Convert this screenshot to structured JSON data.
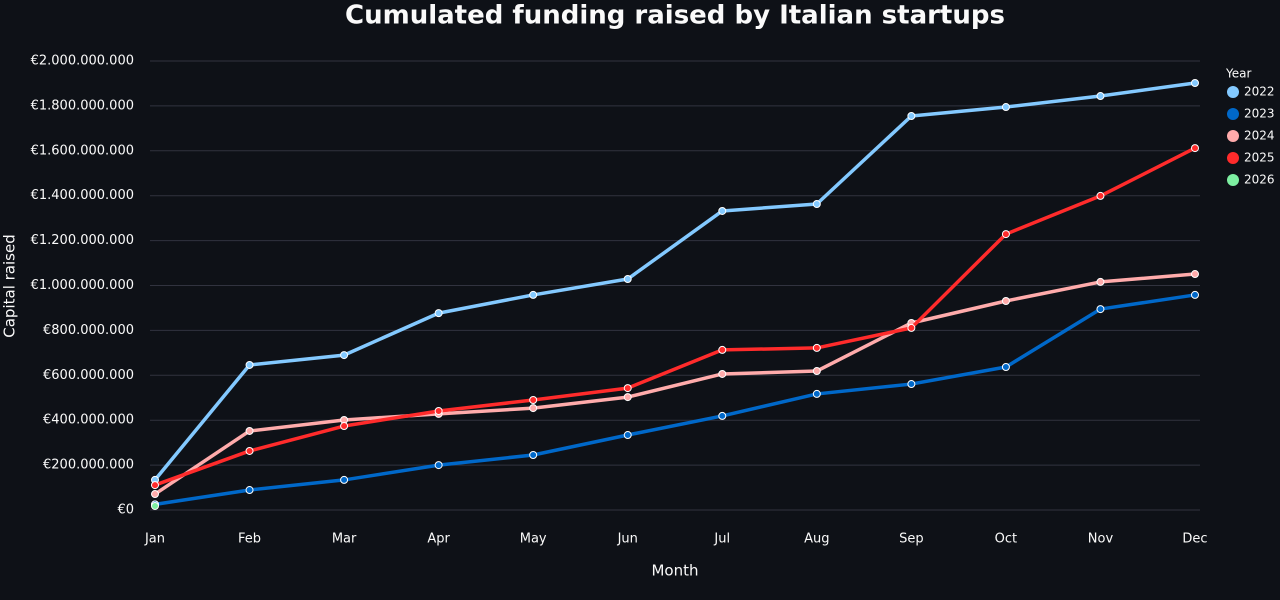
{
  "chart_data": {
    "type": "line",
    "title": "Cumulated funding raised by Italian startups",
    "x_label": "Month",
    "y_label": "Capital raised",
    "legend_title": "Year",
    "legend_position": "right",
    "grid": true,
    "categories": [
      "Jan",
      "Feb",
      "Mar",
      "Apr",
      "May",
      "Jun",
      "Jul",
      "Aug",
      "Sep",
      "Oct",
      "Nov",
      "Dec"
    ],
    "ylim": [
      0,
      2000000000
    ],
    "yticks": [
      {
        "value": 0,
        "label": "€0"
      },
      {
        "value": 200000000,
        "label": "€200.000.000"
      },
      {
        "value": 400000000,
        "label": "€400.000.000"
      },
      {
        "value": 600000000,
        "label": "€600.000.000"
      },
      {
        "value": 800000000,
        "label": "€800.000.000"
      },
      {
        "value": 1000000000,
        "label": "€1.000.000.000"
      },
      {
        "value": 1200000000,
        "label": "€1.200.000.000"
      },
      {
        "value": 1400000000,
        "label": "€1.400.000.000"
      },
      {
        "value": 1600000000,
        "label": "€1.600.000.000"
      },
      {
        "value": 1800000000,
        "label": "€1.800.000.000"
      },
      {
        "value": 2000000000,
        "label": "€2.000.000.000"
      }
    ],
    "series": [
      {
        "name": "2022",
        "color": "#83c9ff",
        "values": [
          134000000,
          646000000,
          690000000,
          877000000,
          958000000,
          1029000000,
          1332000000,
          1363000000,
          1755000000,
          1795000000,
          1844000000,
          1902000000
        ]
      },
      {
        "name": "2023",
        "color": "#0068c9",
        "values": [
          25000000,
          89000000,
          134000000,
          200000000,
          245000000,
          334000000,
          419000000,
          517000000,
          561000000,
          637000000,
          895000000,
          958000000
        ]
      },
      {
        "name": "2024",
        "color": "#ffabab",
        "values": [
          71000000,
          352000000,
          401000000,
          428000000,
          454000000,
          503000000,
          606000000,
          619000000,
          833000000,
          931000000,
          1016000000,
          1051000000
        ]
      },
      {
        "name": "2025",
        "color": "#ff2b2b",
        "values": [
          111000000,
          263000000,
          374000000,
          441000000,
          490000000,
          543000000,
          713000000,
          722000000,
          811000000,
          1229000000,
          1399000000,
          1612000000
        ]
      },
      {
        "name": "2026",
        "color": "#7defa1",
        "values": [
          18000000,
          null,
          null,
          null,
          null,
          null,
          null,
          null,
          null,
          null,
          null,
          null
        ]
      }
    ]
  }
}
